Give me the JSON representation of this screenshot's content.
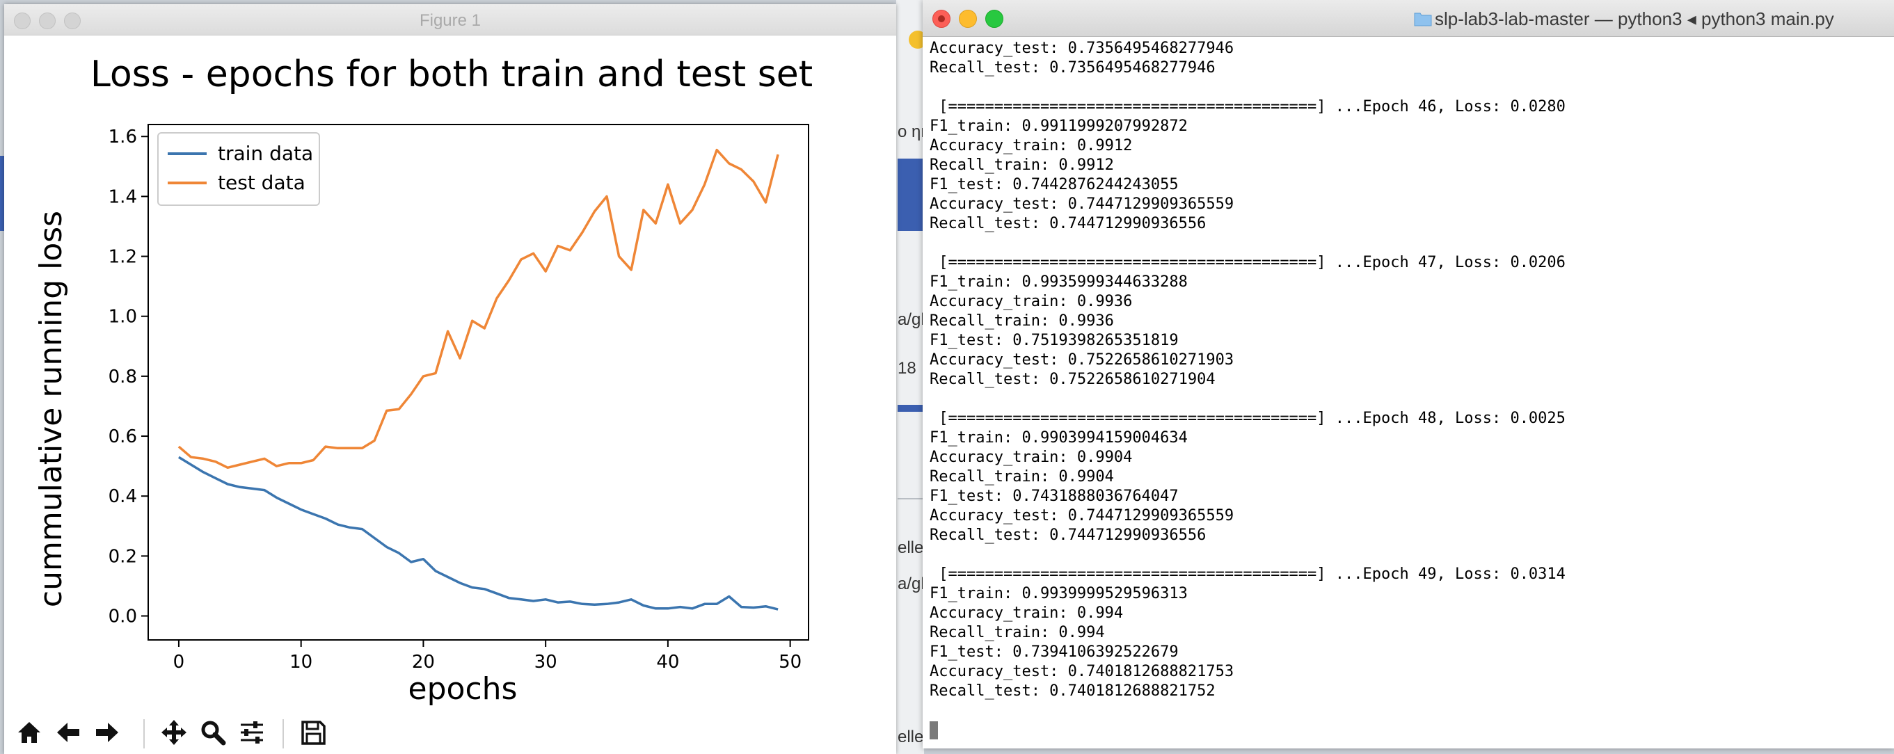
{
  "figure_window": {
    "title": "Figure 1",
    "toolbar": {
      "buttons": [
        {
          "name": "home-icon",
          "label": "Home"
        },
        {
          "name": "back-arrow-icon",
          "label": "Back"
        },
        {
          "name": "forward-arrow-icon",
          "label": "Forward"
        },
        {
          "name": "pan-icon",
          "label": "Pan"
        },
        {
          "name": "zoom-magnifier-icon",
          "label": "Zoom"
        },
        {
          "name": "configure-subplots-icon",
          "label": "Configure"
        },
        {
          "name": "save-icon",
          "label": "Save"
        }
      ]
    }
  },
  "chart_data": {
    "type": "line",
    "title": "Loss - epochs for both train and test set",
    "xlabel": "epochs",
    "ylabel": "cummulative running loss",
    "xlim": [
      -2.5,
      51.5
    ],
    "ylim": [
      -0.08,
      1.64
    ],
    "xticks": [
      0,
      10,
      20,
      30,
      40,
      50
    ],
    "yticks": [
      0.0,
      0.2,
      0.4,
      0.6,
      0.8,
      1.0,
      1.2,
      1.4,
      1.6
    ],
    "legend_position": "top-left",
    "grid": false,
    "x": [
      0,
      1,
      2,
      3,
      4,
      5,
      6,
      7,
      8,
      9,
      10,
      11,
      12,
      13,
      14,
      15,
      16,
      17,
      18,
      19,
      20,
      21,
      22,
      23,
      24,
      25,
      26,
      27,
      28,
      29,
      30,
      31,
      32,
      33,
      34,
      35,
      36,
      37,
      38,
      39,
      40,
      41,
      42,
      43,
      44,
      45,
      46,
      47,
      48,
      49
    ],
    "series": [
      {
        "name": "train data",
        "color": "#3b75af",
        "values": [
          0.53,
          0.505,
          0.48,
          0.46,
          0.44,
          0.43,
          0.425,
          0.42,
          0.395,
          0.375,
          0.355,
          0.34,
          0.325,
          0.305,
          0.295,
          0.29,
          0.26,
          0.23,
          0.21,
          0.18,
          0.19,
          0.15,
          0.13,
          0.11,
          0.095,
          0.09,
          0.075,
          0.06,
          0.055,
          0.05,
          0.055,
          0.045,
          0.048,
          0.04,
          0.038,
          0.04,
          0.045,
          0.055,
          0.035,
          0.025,
          0.025,
          0.03,
          0.025,
          0.04,
          0.04,
          0.065,
          0.03,
          0.028,
          0.032,
          0.022
        ]
      },
      {
        "name": "test data",
        "color": "#ef8636",
        "values": [
          0.565,
          0.53,
          0.525,
          0.515,
          0.495,
          0.505,
          0.515,
          0.525,
          0.5,
          0.51,
          0.51,
          0.52,
          0.565,
          0.56,
          0.56,
          0.56,
          0.585,
          0.685,
          0.69,
          0.74,
          0.8,
          0.81,
          0.95,
          0.86,
          0.985,
          0.96,
          1.06,
          1.12,
          1.19,
          1.21,
          1.15,
          1.235,
          1.22,
          1.28,
          1.35,
          1.4,
          1.2,
          1.155,
          1.355,
          1.31,
          1.44,
          1.31,
          1.355,
          1.44,
          1.555,
          1.51,
          1.49,
          1.45,
          1.38,
          1.54
        ]
      }
    ]
  },
  "terminal_window": {
    "title": "slp-lab3-lab-master — python3 ◂ python3 main.py",
    "lines": [
      "Accuracy_test: 0.7356495468277946",
      "Recall_test: 0.7356495468277946",
      "",
      " [========================================] ...Epoch 46, Loss: 0.0280",
      "F1_train: 0.9911999207992872",
      "Accuracy_train: 0.9912",
      "Recall_train: 0.9912",
      "F1_test: 0.7442876244243055",
      "Accuracy_test: 0.7447129909365559",
      "Recall_test: 0.744712990936556",
      "",
      " [========================================] ...Epoch 47, Loss: 0.0206",
      "F1_train: 0.9935999344633288",
      "Accuracy_train: 0.9936",
      "Recall_train: 0.9936",
      "F1_test: 0.7519398265351819",
      "Accuracy_test: 0.7522658610271903",
      "Recall_test: 0.7522658610271904",
      "",
      " [========================================] ...Epoch 48, Loss: 0.0025",
      "F1_train: 0.9903994159004634",
      "Accuracy_train: 0.9904",
      "Recall_train: 0.9904",
      "F1_test: 0.7431888036764047",
      "Accuracy_test: 0.7447129909365559",
      "Recall_test: 0.744712990936556",
      "",
      " [========================================] ...Epoch 49, Loss: 0.0314",
      "F1_train: 0.9939999529596313",
      "Accuracy_train: 0.994",
      "Recall_train: 0.994",
      "F1_test: 0.7394106392522679",
      "Accuracy_test: 0.7401812688821753",
      "Recall_test: 0.7401812688821752"
    ]
  },
  "background_fragments": [
    "o ηr",
    "a/gl",
    "18",
    "elle",
    "a/gl",
    "elle"
  ]
}
